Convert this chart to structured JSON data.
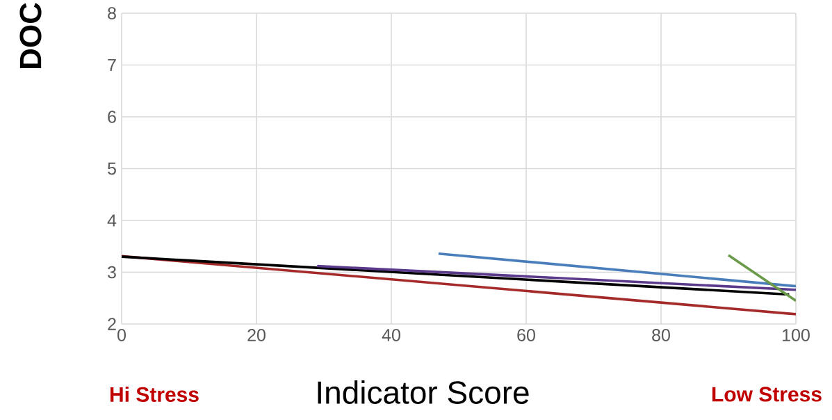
{
  "chart_data": {
    "type": "line",
    "xlabel": "Indicator Score",
    "ylabel": "DOC",
    "annotations": [
      "Hi Stress",
      "Low Stress"
    ],
    "xlim": [
      0,
      100
    ],
    "xticks": [
      0,
      20,
      40,
      60,
      80,
      100
    ],
    "ylim": [
      2,
      8
    ],
    "yticks": [
      2,
      3,
      4,
      5,
      6,
      7,
      8
    ],
    "grid": true,
    "series": [
      {
        "color": "#a52a2a",
        "x": [
          0,
          100
        ],
        "values": [
          3.31,
          2.19
        ]
      },
      {
        "color": "#000000",
        "x": [
          0,
          99
        ],
        "values": [
          3.3,
          2.57
        ]
      },
      {
        "color": "#5b3a8c",
        "x": [
          29,
          100
        ],
        "values": [
          3.12,
          2.66
        ]
      },
      {
        "color": "#4a7ebb",
        "x": [
          47,
          100
        ],
        "values": [
          3.36,
          2.73
        ]
      },
      {
        "color": "#6a9a4a",
        "x": [
          90,
          100
        ],
        "values": [
          3.33,
          2.45
        ]
      }
    ]
  }
}
